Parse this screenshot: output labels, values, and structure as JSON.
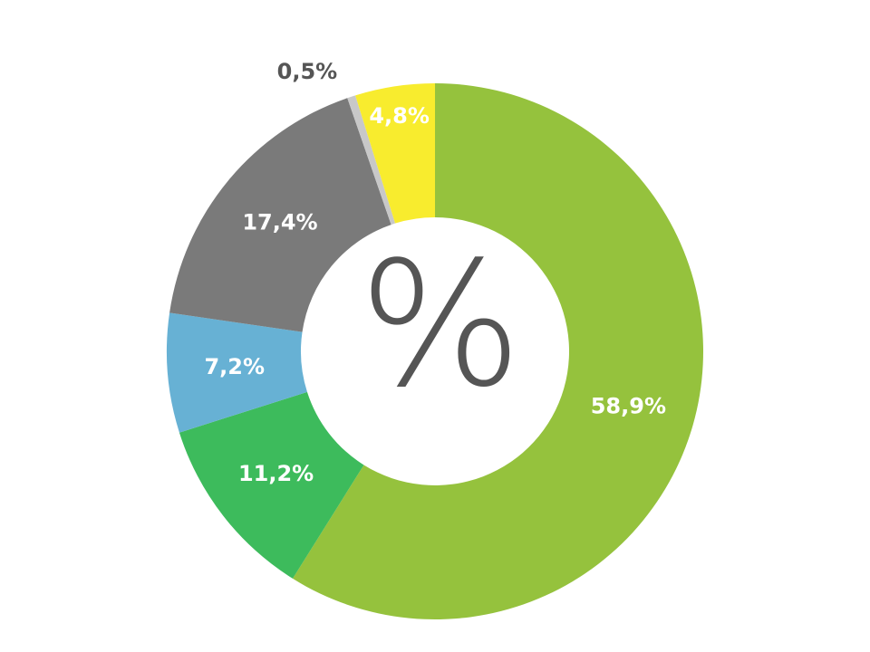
{
  "chart_data": {
    "type": "donut",
    "center_label": "%",
    "values": [
      58.9,
      11.2,
      7.2,
      17.4,
      0.5,
      4.8
    ],
    "value_labels": [
      "58,9%",
      "11,2%",
      "7,2%",
      "17,4%",
      "0,5%",
      "4,8%"
    ],
    "colors": [
      "#95c23d",
      "#3dbb5c",
      "#67b1d4",
      "#7a7a7a",
      "#c8c8c8",
      "#f8ec2e"
    ]
  }
}
